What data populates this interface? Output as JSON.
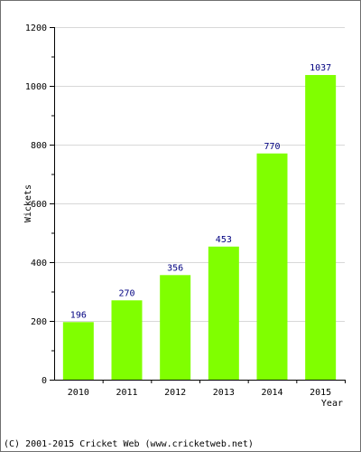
{
  "chart_data": {
    "type": "bar",
    "categories": [
      "2010",
      "2011",
      "2012",
      "2013",
      "2014",
      "2015"
    ],
    "values": [
      196,
      270,
      356,
      453,
      770,
      1037
    ],
    "data_labels": [
      "196",
      "270",
      "356",
      "453",
      "770",
      "1037"
    ],
    "ylabel": "Wickets",
    "xlabel": "Year",
    "ylim": [
      0,
      1200
    ],
    "yticks": [
      0,
      200,
      400,
      600,
      800,
      1000,
      1200
    ],
    "ytick_labels": [
      "0",
      "200",
      "400",
      "600",
      "800",
      "1000",
      "1200"
    ],
    "grid": true,
    "legend": "none"
  },
  "colors": {
    "bar": "#80ff00",
    "data_label": "#000080",
    "grid": "#d8d8d8",
    "axis": "#000000"
  },
  "footer": {
    "credit": "(C) 2001-2015 Cricket Web (www.cricketweb.net)"
  }
}
